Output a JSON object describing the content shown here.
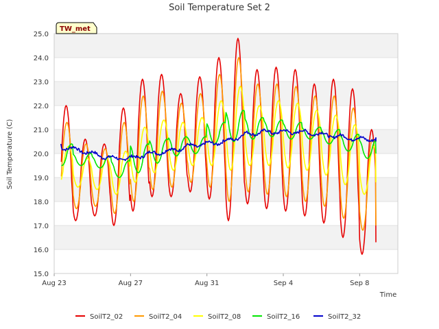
{
  "chart_data": {
    "type": "line",
    "title": "Soil Temperature Set 2",
    "xlabel": "Time",
    "ylabel": "Soil Temperature (C)",
    "ylim": [
      15.0,
      25.0
    ],
    "yticks": [
      "15.0",
      "16.0",
      "17.0",
      "18.0",
      "19.0",
      "20.0",
      "21.0",
      "22.0",
      "23.0",
      "24.0",
      "25.0"
    ],
    "xlim": [
      "2023-08-23",
      "2023-09-10"
    ],
    "xticks": [
      {
        "label": "Aug 23",
        "date": "2023-08-23"
      },
      {
        "label": "Aug 27",
        "date": "2023-08-27"
      },
      {
        "label": "Aug 31",
        "date": "2023-08-31"
      },
      {
        "label": "Sep 4",
        "date": "2023-09-04"
      },
      {
        "label": "Sep 8",
        "date": "2023-09-08"
      }
    ],
    "grid": "horizontal bands",
    "legend_position": "bottom",
    "station_badge": "TW_met",
    "series": [
      {
        "name": "SoilT2_02",
        "color": "#e60000",
        "daily_min": [
          17.3,
          17.2,
          17.4,
          17.0,
          17.6,
          18.2,
          18.2,
          18.4,
          18.1,
          17.2,
          17.9,
          17.7,
          17.6,
          17.4,
          17.1,
          16.5,
          15.8
        ],
        "daily_max": [
          22.0,
          20.6,
          20.4,
          21.9,
          23.1,
          23.3,
          22.5,
          23.2,
          24.0,
          24.8,
          23.5,
          23.6,
          23.5,
          22.9,
          23.1,
          22.7,
          21.0
        ],
        "end_value": 16.3
      },
      {
        "name": "SoilT2_04",
        "color": "#ff9900",
        "daily_min": [
          17.9,
          17.7,
          17.8,
          17.5,
          18.0,
          18.5,
          18.6,
          18.8,
          18.6,
          18.0,
          18.4,
          18.3,
          18.2,
          18.0,
          17.8,
          17.3,
          16.8
        ],
        "daily_max": [
          21.3,
          20.4,
          20.2,
          21.3,
          22.4,
          22.6,
          22.1,
          22.5,
          23.3,
          24.0,
          22.9,
          22.9,
          22.8,
          22.4,
          22.4,
          21.9,
          20.6
        ],
        "end_value": 17.0
      },
      {
        "name": "SoilT2_08",
        "color": "#ffff00",
        "daily_min": [
          18.7,
          18.6,
          18.5,
          18.3,
          18.8,
          19.2,
          19.3,
          19.5,
          19.5,
          19.3,
          19.5,
          19.5,
          19.4,
          19.3,
          19.1,
          18.7,
          18.3
        ],
        "daily_max": [
          20.3,
          19.8,
          19.8,
          20.1,
          21.1,
          21.4,
          21.3,
          21.5,
          22.2,
          22.8,
          22.0,
          22.2,
          22.1,
          21.8,
          21.6,
          21.2,
          20.3
        ],
        "end_value": 18.8
      },
      {
        "name": "SoilT2_16",
        "color": "#00e600",
        "daily_min": [
          19.5,
          19.5,
          19.4,
          19.0,
          19.2,
          19.6,
          19.9,
          20.0,
          20.4,
          20.5,
          20.6,
          20.7,
          20.6,
          20.6,
          20.4,
          20.1,
          19.8
        ],
        "daily_max": [
          20.4,
          20.0,
          19.9,
          19.7,
          20.4,
          20.6,
          20.7,
          20.7,
          21.3,
          21.8,
          21.5,
          21.4,
          21.3,
          21.1,
          21.0,
          20.8,
          20.6
        ],
        "end_value": 20.0
      },
      {
        "name": "SoilT2_32",
        "color": "#0000cc",
        "daily_avg": [
          20.3,
          20.2,
          20.0,
          19.8,
          19.8,
          20.0,
          20.1,
          20.3,
          20.4,
          20.5,
          20.8,
          20.9,
          20.9,
          20.9,
          20.8,
          20.7,
          20.6
        ],
        "start_value": 20.4,
        "end_value": 20.5
      }
    ]
  }
}
